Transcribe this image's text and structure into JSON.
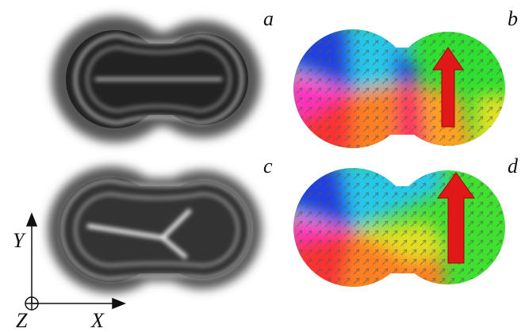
{
  "panels": [
    {
      "label": "a"
    },
    {
      "label": "b"
    },
    {
      "label": "c"
    },
    {
      "label": "d"
    }
  ],
  "axes": {
    "x": "X",
    "y": "Y",
    "z": "Z"
  }
}
